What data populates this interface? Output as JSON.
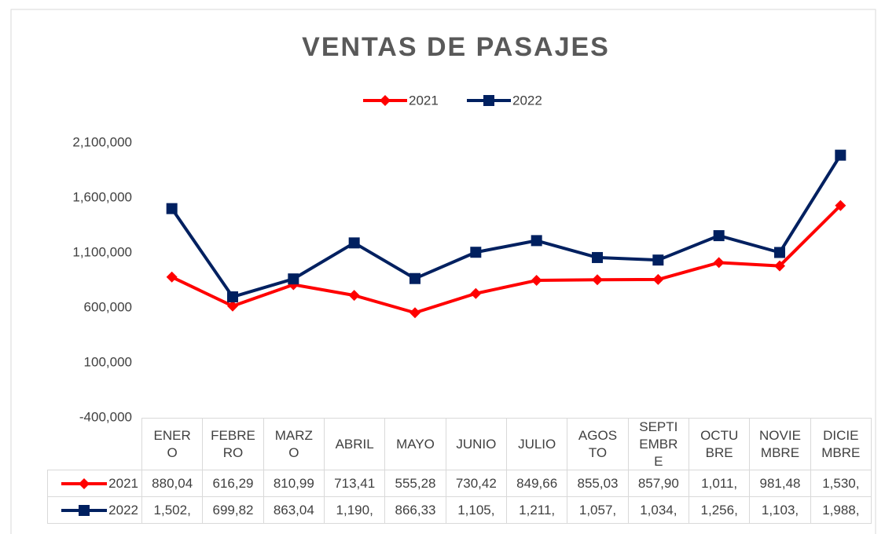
{
  "chart_data": {
    "type": "line",
    "title": "VENTAS DE PASAJES",
    "categories": [
      "ENERO",
      "FEBRERO",
      "MARZO",
      "ABRIL",
      "MAYO",
      "JUNIO",
      "JULIO",
      "AGOSTO",
      "SEPTIEMBRE",
      "OCTUBRE",
      "NOVIEMBRE",
      "DICIEMBRE"
    ],
    "series": [
      {
        "name": "2021",
        "color": "#ff0000",
        "marker": "diamond",
        "values": [
          880040,
          616290,
          810990,
          713410,
          555280,
          730420,
          849660,
          855030,
          857900,
          1011500,
          981480,
          1530500
        ],
        "value_labels": [
          "880,04",
          "616,29",
          "810,99",
          "713,41",
          "555,28",
          "730,42",
          "849,66",
          "855,03",
          "857,90",
          "1,011,",
          "981,48",
          "1,530,"
        ]
      },
      {
        "name": "2022",
        "color": "#002060",
        "marker": "square",
        "values": [
          1502500,
          699820,
          863040,
          1190500,
          866330,
          1105500,
          1211500,
          1057500,
          1034500,
          1256500,
          1103500,
          1988500
        ],
        "value_labels": [
          "1,502,",
          "699,82",
          "863,04",
          "1,190,",
          "866,33",
          "1,105,",
          "1,211,",
          "1,057,",
          "1,034,",
          "1,256,",
          "1,103,",
          "1,988,"
        ]
      }
    ],
    "ylim": [
      -400000,
      2100000
    ],
    "yticks": [
      {
        "value": -400000,
        "label": "-400,000"
      },
      {
        "value": 100000,
        "label": "100,000"
      },
      {
        "value": 600000,
        "label": "600,000"
      },
      {
        "value": 1100000,
        "label": "1,100,000"
      },
      {
        "value": 1600000,
        "label": "1,600,000"
      },
      {
        "value": 2100000,
        "label": "2,100,000"
      }
    ],
    "legend": "top",
    "grid": false,
    "data_table": true
  }
}
